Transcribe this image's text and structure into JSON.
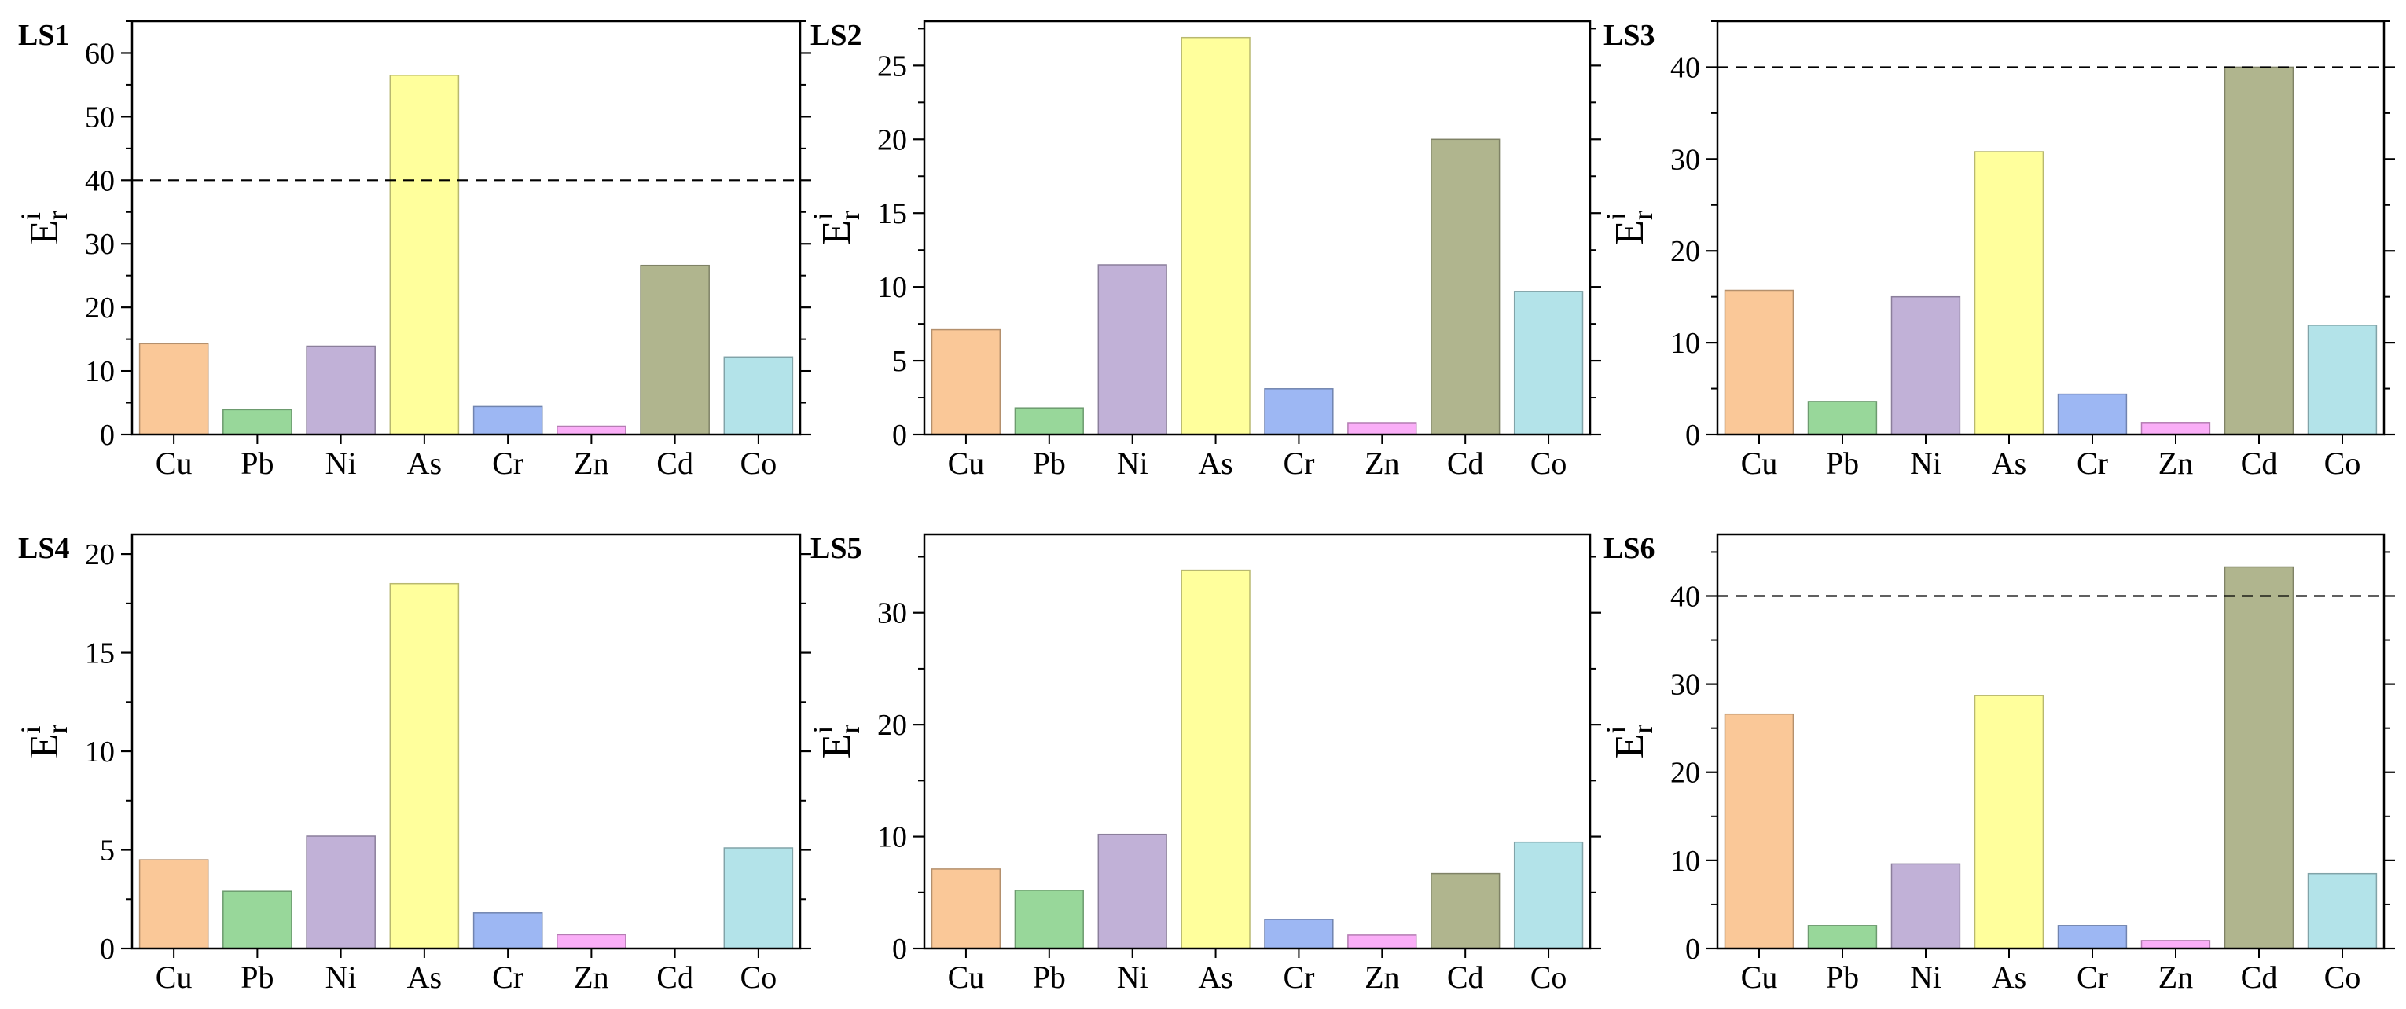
{
  "chart_data": [
    {
      "type": "bar",
      "panel_label": "LS1",
      "categories": [
        "Cu",
        "Pb",
        "Ni",
        "As",
        "Cr",
        "Zn",
        "Cd",
        "Co"
      ],
      "values": [
        14.3,
        3.9,
        13.9,
        56.5,
        4.4,
        1.3,
        26.6,
        12.2
      ],
      "ylim": [
        0,
        65
      ],
      "yticks": [
        0,
        10,
        20,
        30,
        40,
        50,
        60
      ],
      "ylabel": "E",
      "ylabel_sup": "i",
      "ylabel_sub": "r",
      "threshold": 40,
      "grid": false
    },
    {
      "type": "bar",
      "panel_label": "LS2",
      "categories": [
        "Cu",
        "Pb",
        "Ni",
        "As",
        "Cr",
        "Zn",
        "Cd",
        "Co"
      ],
      "values": [
        7.1,
        1.8,
        11.5,
        26.9,
        3.1,
        0.8,
        20.0,
        9.7
      ],
      "ylim": [
        0,
        28
      ],
      "yticks": [
        0,
        5,
        10,
        15,
        20,
        25
      ],
      "ylabel": "E",
      "ylabel_sup": "i",
      "ylabel_sub": "r",
      "threshold": null,
      "grid": false
    },
    {
      "type": "bar",
      "panel_label": "LS3",
      "categories": [
        "Cu",
        "Pb",
        "Ni",
        "As",
        "Cr",
        "Zn",
        "Cd",
        "Co"
      ],
      "values": [
        15.7,
        3.6,
        15.0,
        30.8,
        4.4,
        1.3,
        40.0,
        11.9
      ],
      "ylim": [
        0,
        45
      ],
      "yticks": [
        0,
        10,
        20,
        30,
        40
      ],
      "ylabel": "E",
      "ylabel_sup": "i",
      "ylabel_sub": "r",
      "threshold": 40,
      "grid": false
    },
    {
      "type": "bar",
      "panel_label": "LS4",
      "categories": [
        "Cu",
        "Pb",
        "Ni",
        "As",
        "Cr",
        "Zn",
        "Cd",
        "Co"
      ],
      "values": [
        4.5,
        2.9,
        5.7,
        18.5,
        1.8,
        0.7,
        0,
        5.1
      ],
      "ylim": [
        0,
        21
      ],
      "yticks": [
        0,
        5,
        10,
        15,
        20
      ],
      "ylabel": "E",
      "ylabel_sup": "i",
      "ylabel_sub": "r",
      "threshold": null,
      "grid": false
    },
    {
      "type": "bar",
      "panel_label": "LS5",
      "categories": [
        "Cu",
        "Pb",
        "Ni",
        "As",
        "Cr",
        "Zn",
        "Cd",
        "Co"
      ],
      "values": [
        7.1,
        5.2,
        10.2,
        33.8,
        2.6,
        1.2,
        6.7,
        9.5
      ],
      "ylim": [
        0,
        37
      ],
      "yticks": [
        0,
        10,
        20,
        30
      ],
      "ylabel": "E",
      "ylabel_sup": "i",
      "ylabel_sub": "r",
      "threshold": null,
      "grid": false
    },
    {
      "type": "bar",
      "panel_label": "LS6",
      "categories": [
        "Cu",
        "Pb",
        "Ni",
        "As",
        "Cr",
        "Zn",
        "Cd",
        "Co"
      ],
      "values": [
        26.6,
        2.6,
        9.6,
        28.7,
        2.6,
        0.9,
        43.3,
        8.5
      ],
      "ylim": [
        0,
        47
      ],
      "yticks": [
        0,
        10,
        20,
        30,
        40
      ],
      "ylabel": "E",
      "ylabel_sup": "i",
      "ylabel_sub": "r",
      "threshold": 40,
      "grid": false
    }
  ],
  "colors": {
    "Cu": "#FAC898",
    "Pb": "#98D79A",
    "Ni": "#C1B1D7",
    "As": "#FFFF9C",
    "Cr": "#9DB7F3",
    "Zn": "#FAAEF7",
    "Cd": "#B0B58E",
    "Co": "#B3E3E9"
  }
}
